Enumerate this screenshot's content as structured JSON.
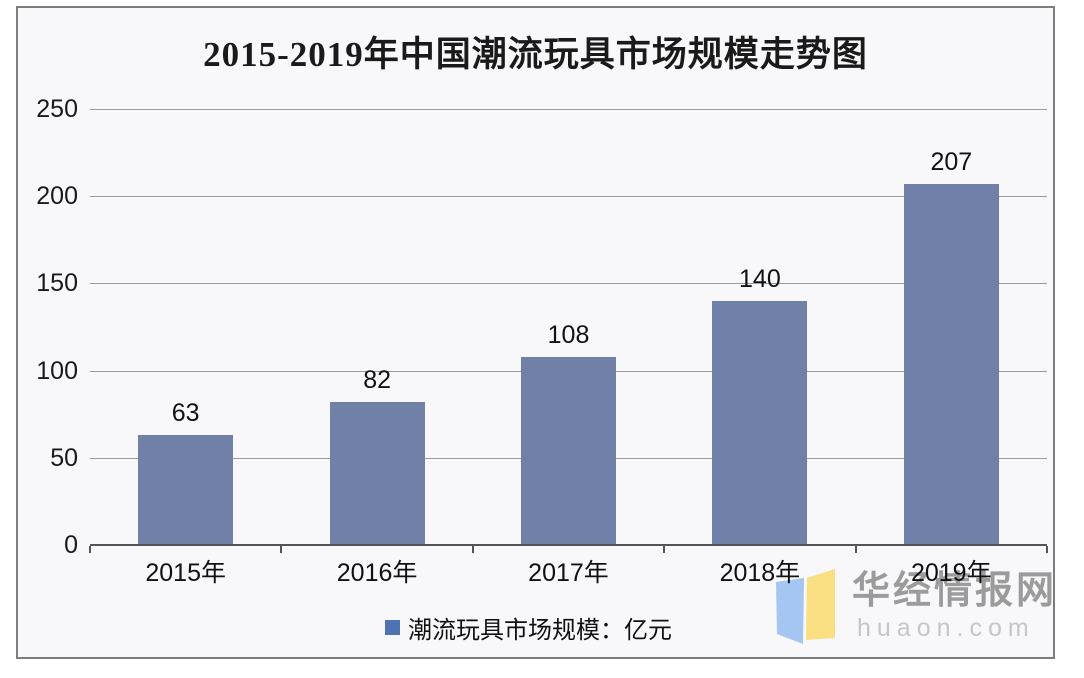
{
  "chart_data": {
    "type": "bar",
    "title": "2015-2019年中国潮流玩具市场规模走势图",
    "categories": [
      "2015年",
      "2016年",
      "2017年",
      "2018年",
      "2019年"
    ],
    "values": [
      63,
      82,
      108,
      140,
      207
    ],
    "series_name": "潮流玩具市场规模：亿元",
    "xlabel": "",
    "ylabel": "",
    "ylim": [
      0,
      250
    ],
    "yticks": [
      0,
      50,
      100,
      150,
      200,
      250
    ],
    "grid": true,
    "legend_position": "bottom",
    "colors": {
      "bar": "#7080A6",
      "legend_marker": "#4E73B5",
      "gridline": "#9a9a9a",
      "axis": "#545454",
      "frame_border": "#7d7d7d",
      "plot_background": "#f8f7f9",
      "title_text": "#1a1a1a",
      "label_text": "#111111"
    }
  },
  "watermark": {
    "name": "华经情报网",
    "domain": "huaon.com",
    "colors": {
      "name_text": "#9b9b9b",
      "domain_text": "#c6c6c6",
      "logo_left": "#a5c5f2",
      "logo_right": "#fadf82"
    }
  }
}
